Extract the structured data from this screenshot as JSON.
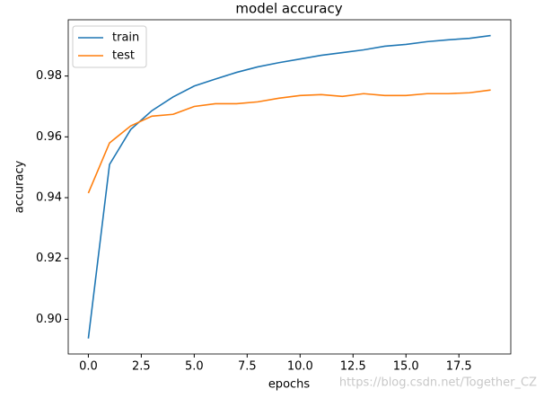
{
  "chart_data": {
    "type": "line",
    "title": "model accuracy",
    "x_label": "epochs",
    "y_label": "accuracy",
    "x": [
      0,
      1,
      2,
      3,
      4,
      5,
      6,
      7,
      8,
      9,
      10,
      11,
      12,
      13,
      14,
      15,
      16,
      17,
      18,
      19
    ],
    "series": [
      {
        "name": "train",
        "color": "#1f77b4",
        "values": [
          0.8937,
          0.9509,
          0.9624,
          0.9686,
          0.9731,
          0.9767,
          0.979,
          0.9812,
          0.983,
          0.9844,
          0.9856,
          0.9868,
          0.9877,
          0.9886,
          0.9898,
          0.9904,
          0.9913,
          0.9919,
          0.9924,
          0.9933
        ]
      },
      {
        "name": "test",
        "color": "#ff7f0e",
        "values": [
          0.9415,
          0.958,
          0.9636,
          0.9668,
          0.9674,
          0.97,
          0.9709,
          0.9709,
          0.9715,
          0.9727,
          0.9736,
          0.9739,
          0.9733,
          0.9742,
          0.9736,
          0.9736,
          0.9742,
          0.9742,
          0.9745,
          0.9754
        ]
      }
    ],
    "xlim": [
      -0.95,
      19.95
    ],
    "xticks": [
      {
        "value": 0,
        "label": "0.0"
      },
      2.5,
      {
        "value": 5,
        "label": "5.0"
      },
      7.5,
      {
        "value": 10,
        "label": "10.0"
      },
      12.5,
      {
        "value": 15,
        "label": "15.0"
      },
      17.5
    ],
    "ylim": [
      0.8886,
      0.9985
    ],
    "yticks": [
      {
        "value": 0.9,
        "label": "0.90"
      },
      0.92,
      0.94,
      0.96,
      0.98
    ],
    "legend": "upper left",
    "watermark": "https://blog.csdn.net/Together_CZ"
  }
}
